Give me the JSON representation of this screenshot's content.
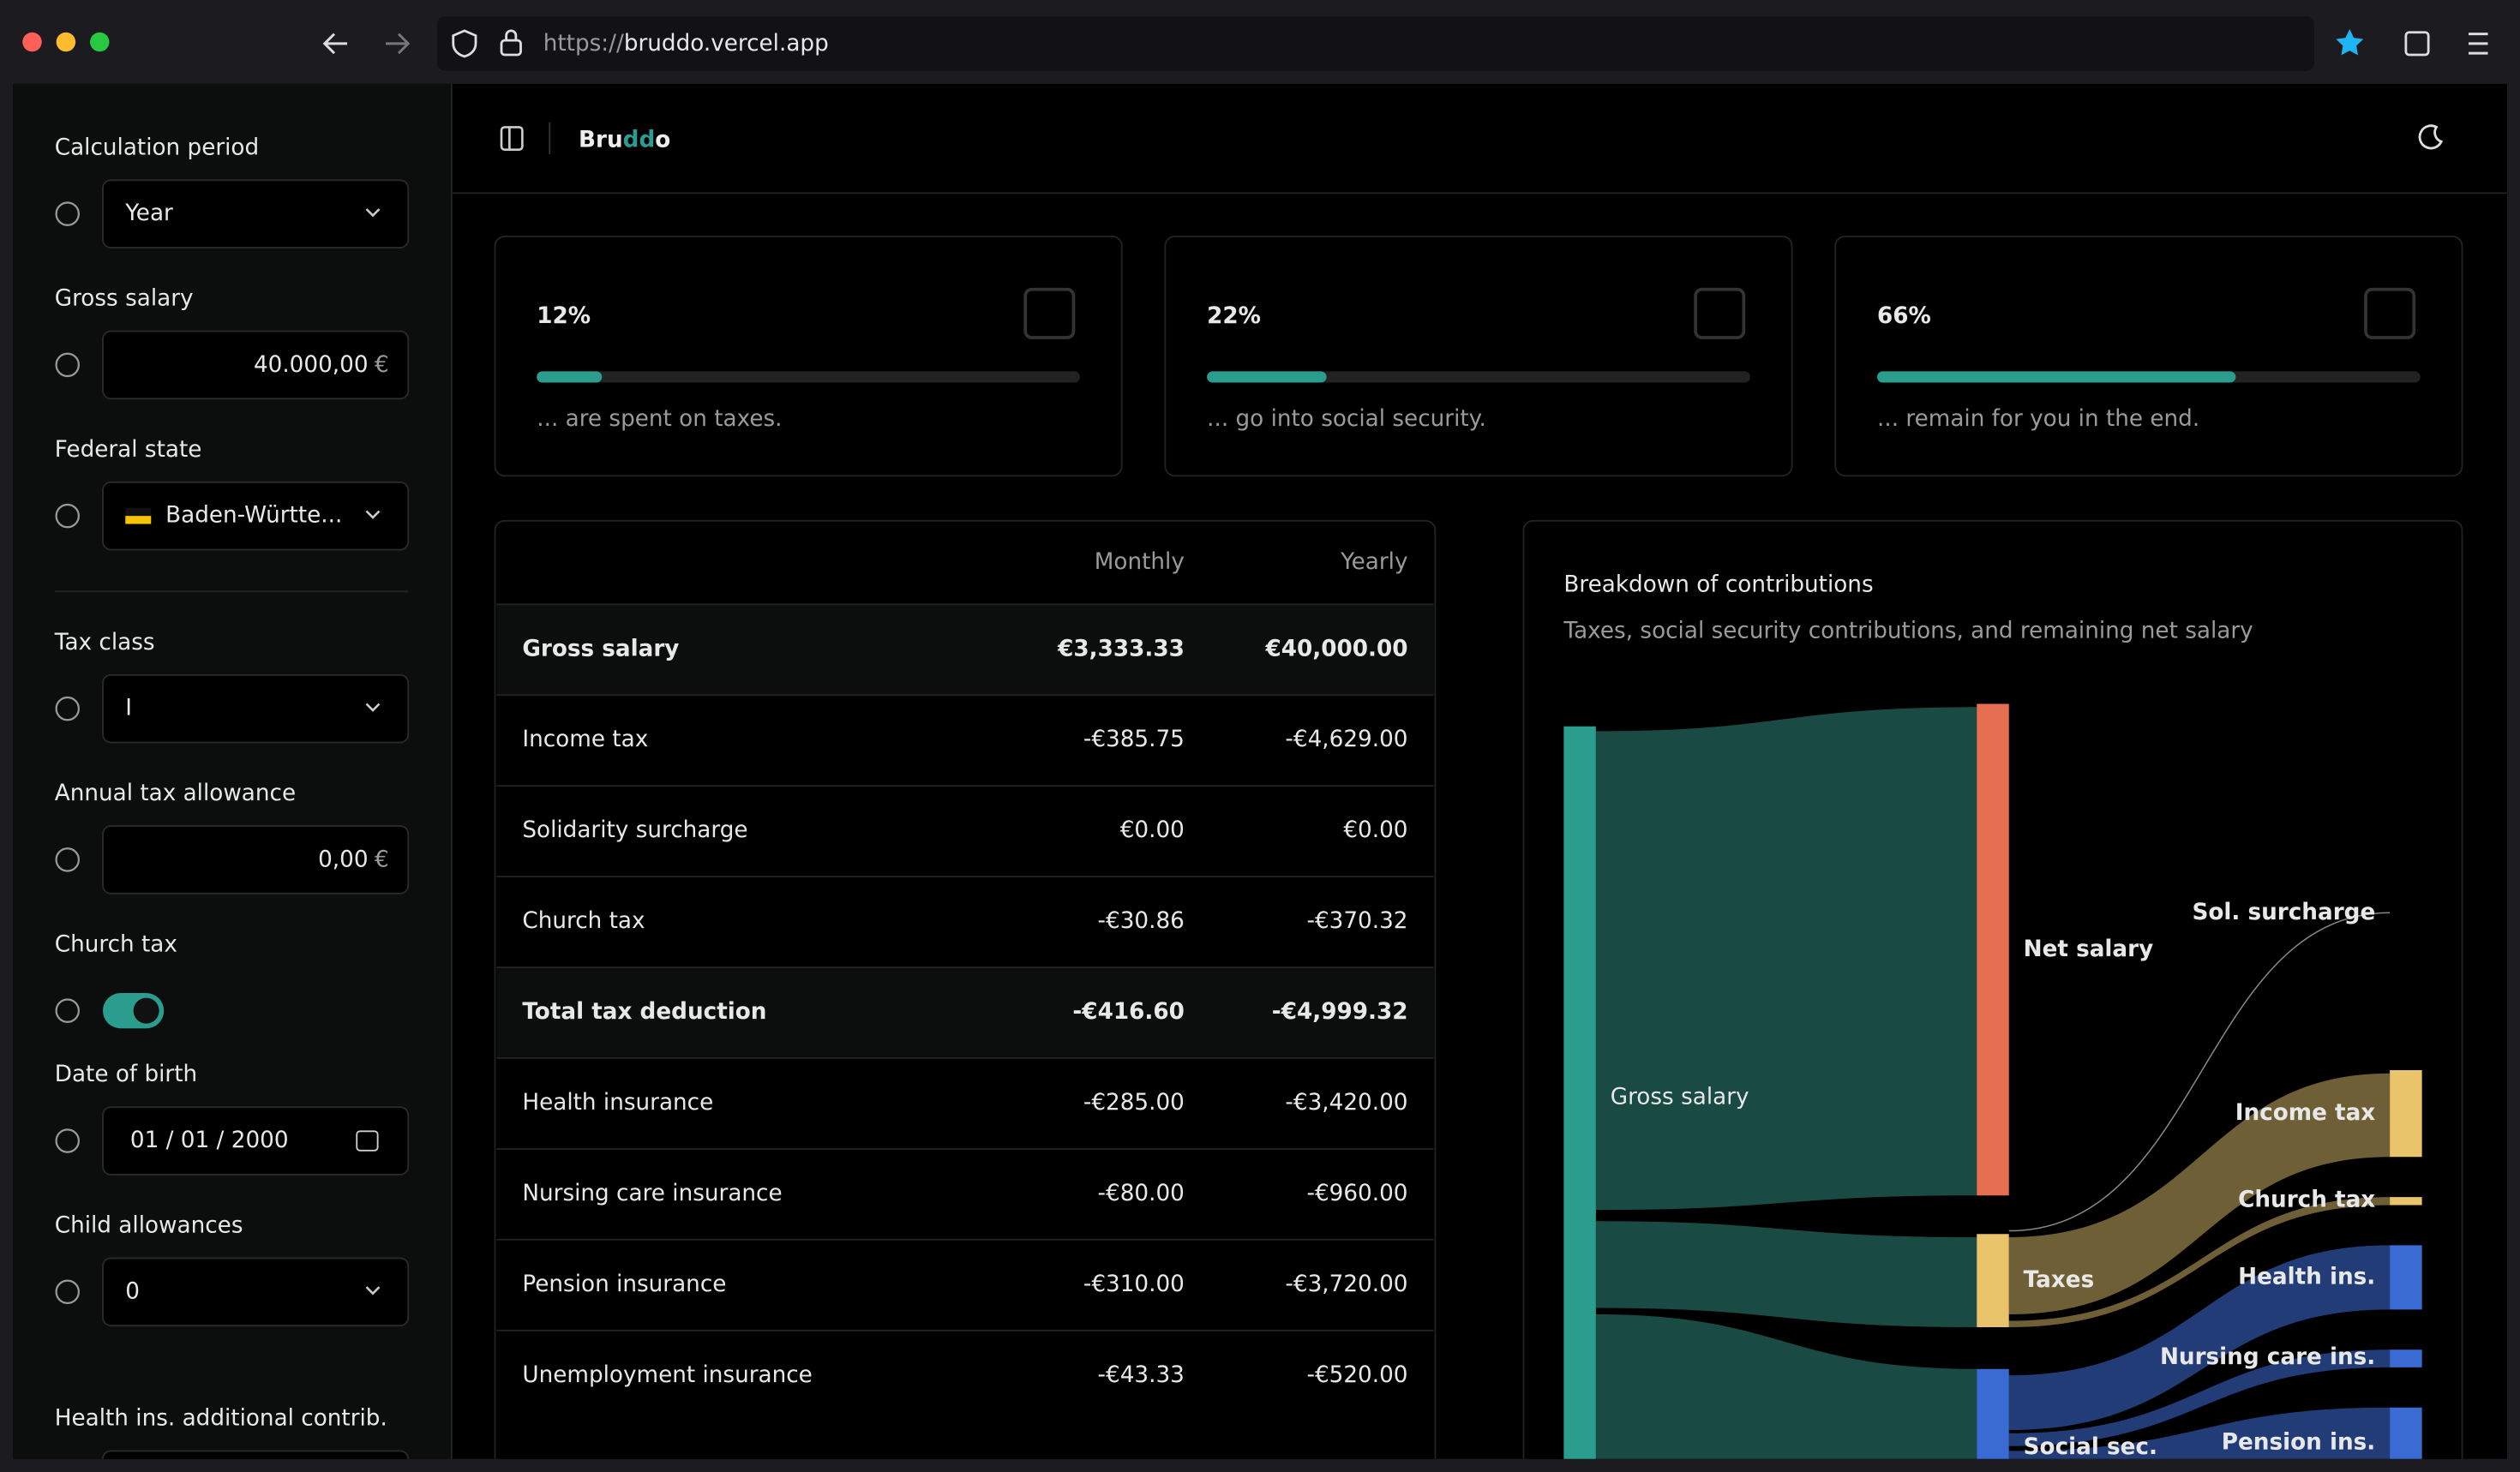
{
  "browser": {
    "url_scheme": "https://",
    "url_host": "bruddo.vercel.app"
  },
  "sidebar": {
    "fields": [
      {
        "label": "Calculation period",
        "value": "Year",
        "kind": "select"
      },
      {
        "label": "Gross salary",
        "value": "40.000,00",
        "unit": "€",
        "kind": "number"
      },
      {
        "label": "Federal state",
        "value": "Baden-Württe...",
        "kind": "select",
        "flag": true
      },
      {
        "label": "Tax class",
        "value": "I",
        "kind": "select"
      },
      {
        "label": "Annual tax allowance",
        "value": "0,00",
        "unit": "€",
        "kind": "number"
      },
      {
        "label": "Church tax",
        "kind": "toggle",
        "on": true
      },
      {
        "label": "Date of birth",
        "value": "01 / 01 / 2000",
        "kind": "date"
      },
      {
        "label": "Child allowances",
        "value": "0",
        "kind": "select"
      },
      {
        "label": "Health ins. additional contrib.",
        "kind": "number"
      }
    ]
  },
  "header": {
    "brand": [
      "Bru",
      "dd",
      "o"
    ]
  },
  "stats": [
    {
      "value": 12,
      "label": "12%",
      "caption": "... are spent on taxes."
    },
    {
      "value": 22,
      "label": "22%",
      "caption": "... go into social security."
    },
    {
      "value": 66,
      "label": "66%",
      "caption": "... remain for you in the end."
    }
  ],
  "table": {
    "columns": [
      "Monthly",
      "Yearly"
    ],
    "rows": [
      {
        "label": "Gross salary",
        "monthly": "€3,333.33",
        "yearly": "€40,000.00",
        "bold": true
      },
      {
        "label": "Income tax",
        "monthly": "-€385.75",
        "yearly": "-€4,629.00"
      },
      {
        "label": "Solidarity surcharge",
        "monthly": "€0.00",
        "yearly": "€0.00"
      },
      {
        "label": "Church tax",
        "monthly": "-€30.86",
        "yearly": "-€370.32"
      },
      {
        "label": "Total tax deduction",
        "monthly": "-€416.60",
        "yearly": "-€4,999.32",
        "bold": true
      },
      {
        "label": "Health insurance",
        "monthly": "-€285.00",
        "yearly": "-€3,420.00"
      },
      {
        "label": "Nursing care insurance",
        "monthly": "-€80.00",
        "yearly": "-€960.00"
      },
      {
        "label": "Pension insurance",
        "monthly": "-€310.00",
        "yearly": "-€3,720.00"
      },
      {
        "label": "Unemployment insurance",
        "monthly": "-€43.33",
        "yearly": "-€520.00"
      }
    ]
  },
  "chart": {
    "title": "Breakdown of contributions",
    "subtitle": "Taxes, social security contributions, and remaining net salary",
    "nodes": [
      "Gross salary",
      "Net salary",
      "Taxes",
      "Social sec.",
      "Sol. surcharge",
      "Income tax",
      "Church tax",
      "Health ins.",
      "Nursing care ins.",
      "Pension ins."
    ]
  }
}
